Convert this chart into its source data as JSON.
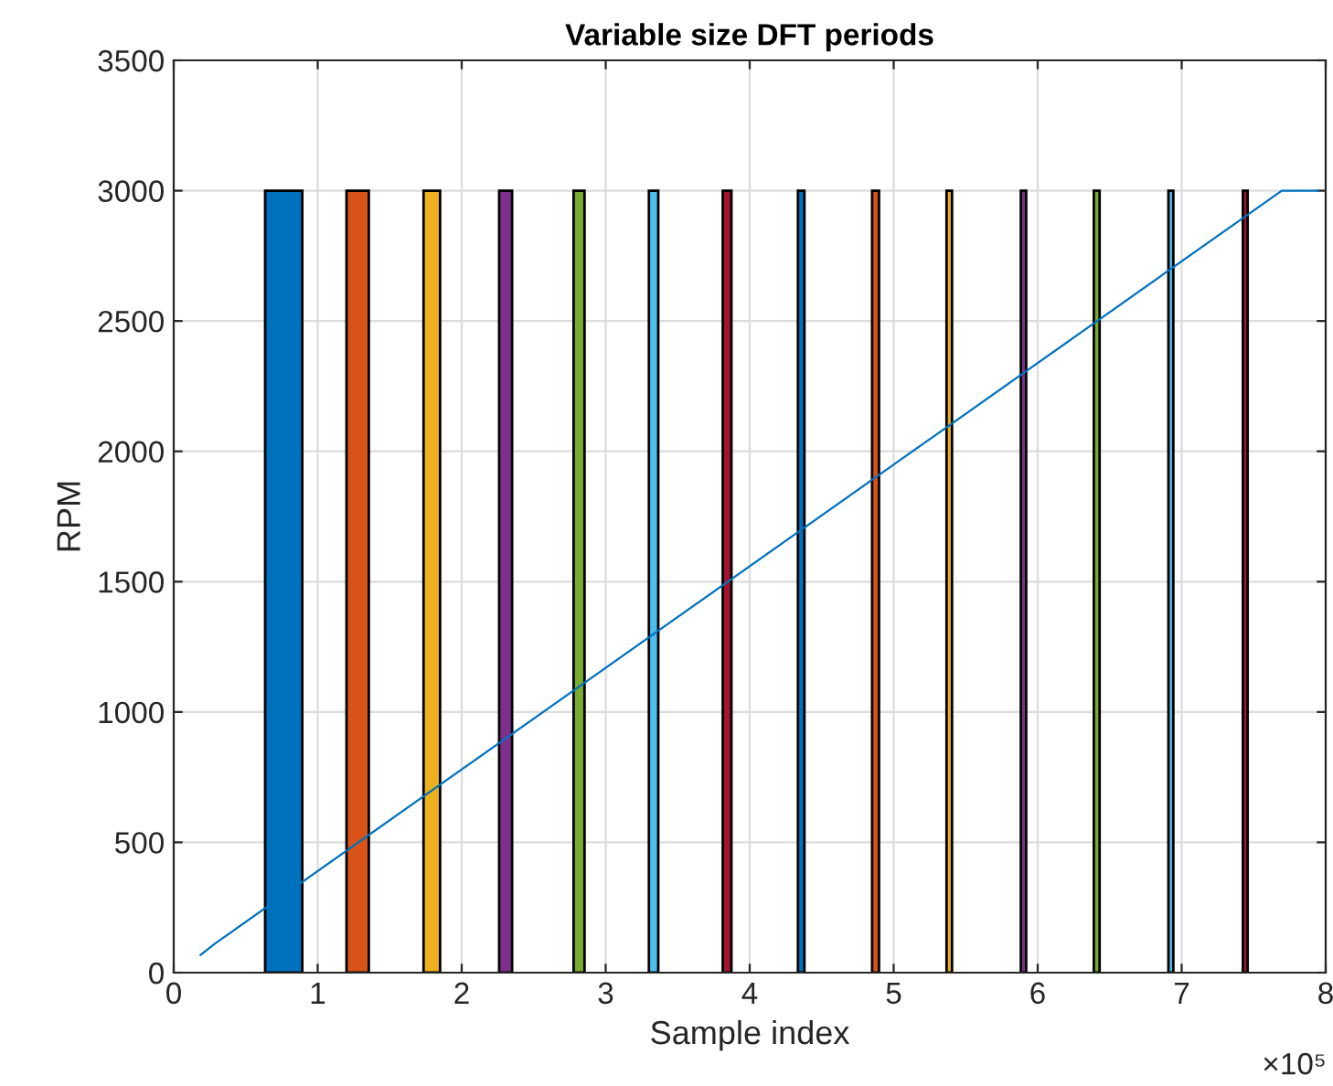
{
  "chart_data": {
    "type": "histogram",
    "title": "Variable size DFT periods",
    "xlabel": "Sample index",
    "ylabel": "RPM",
    "annotations": [
      "×10⁵"
    ],
    "bins": [
      0.635,
      0.893,
      1.2,
      1.355,
      1.735,
      1.85,
      2.26,
      2.35,
      2.777,
      2.853,
      3.3,
      3.365,
      3.813,
      3.873,
      4.335,
      4.38,
      4.85,
      4.898,
      5.367,
      5.405,
      5.883,
      5.92,
      6.39,
      6.43,
      6.908,
      6.942,
      7.425,
      7.458
    ],
    "values": [
      3000,
      null,
      3000,
      null,
      3000,
      null,
      3000,
      null,
      3000,
      null,
      3000,
      null,
      3000,
      null,
      3000,
      null,
      3000,
      null,
      3000,
      null,
      3000,
      null,
      3000,
      null,
      3000,
      null,
      3000
    ],
    "colors": [
      "#0072bd",
      null,
      "#d95319",
      null,
      "#edb120",
      null,
      "#7e2f8e",
      null,
      "#77ac30",
      null,
      "#4dbeee",
      null,
      "#a2142f",
      null,
      "#0072bd",
      null,
      "#d95319",
      null,
      "#edb120",
      null,
      "#7e2f8e",
      null,
      "#77ac30",
      null,
      "#4dbeee",
      null,
      "#a2142f"
    ],
    "series": [
      {
        "type": "line",
        "color": "#0072bd",
        "x": [
          0.186,
          0.296,
          7.695,
          7.95
        ],
        "values": [
          68,
          115,
          3000,
          3000
        ]
      }
    ],
    "xlim": [
      0,
      8
    ],
    "ylim": [
      0,
      3500
    ],
    "xticks": [
      0,
      1,
      2,
      3,
      4,
      5,
      6,
      7,
      8
    ],
    "yticks": [
      0,
      500,
      1000,
      1500,
      2000,
      2500,
      3000,
      3500
    ],
    "grid": true
  }
}
